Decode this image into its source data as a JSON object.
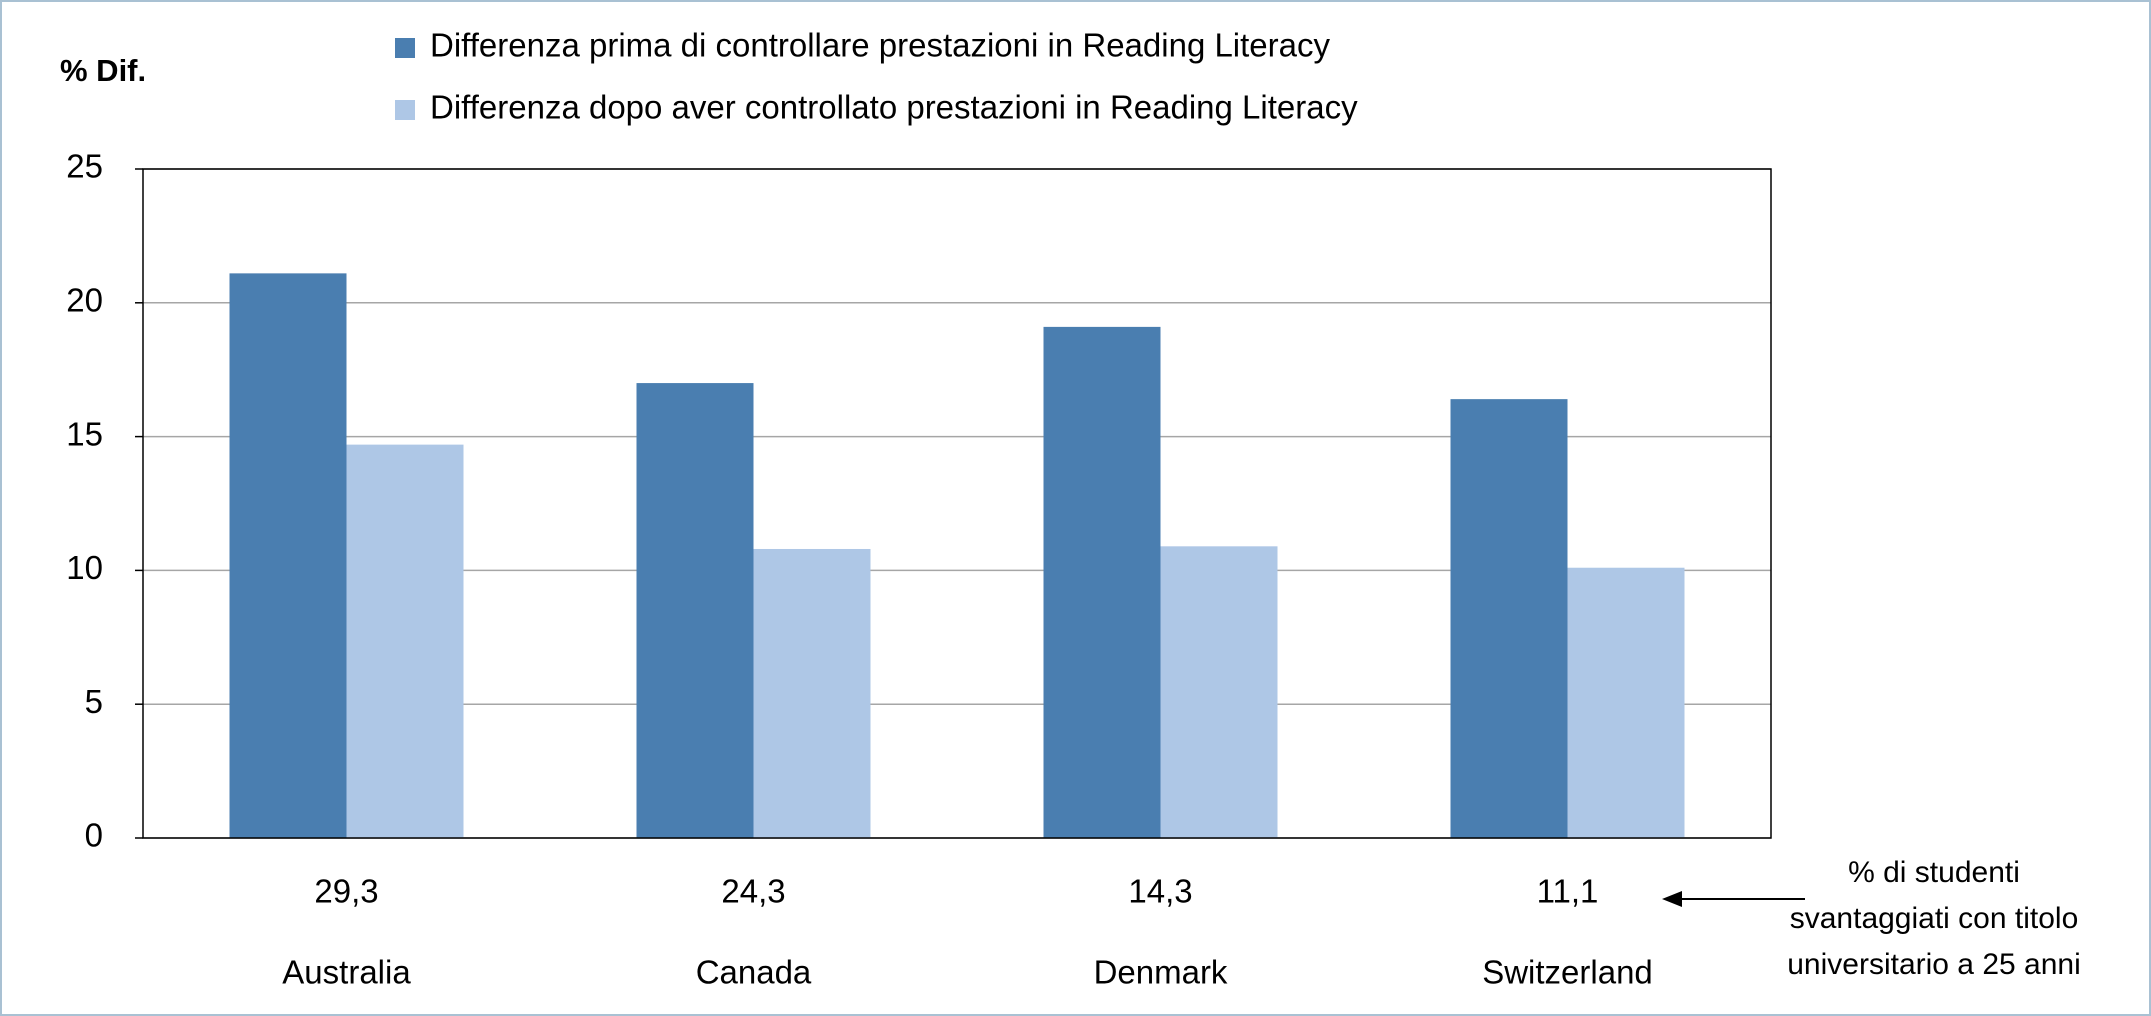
{
  "chart_data": {
    "type": "bar",
    "y_label": "% Dif.",
    "categories": [
      "Australia",
      "Canada",
      "Denmark",
      "Switzerland"
    ],
    "sublabels": [
      "29,3",
      "24,3",
      "14,3",
      "11,1"
    ],
    "annotation": [
      "% di studenti",
      "svantaggiati  con titolo",
      "universitario a 25 anni"
    ],
    "series": [
      {
        "name": "Differenza prima di controllare prestazioni in Reading Literacy",
        "color": "#4a7eb0",
        "values": [
          21.1,
          17.0,
          19.1,
          16.4
        ]
      },
      {
        "name": "Differenza dopo aver controllato prestazioni in Reading Literacy",
        "color": "#aec7e6",
        "values": [
          14.7,
          10.8,
          10.9,
          10.1
        ]
      }
    ],
    "ylim": [
      0,
      25
    ],
    "yticks": [
      0,
      5,
      10,
      15,
      20,
      25
    ],
    "grid": true
  }
}
